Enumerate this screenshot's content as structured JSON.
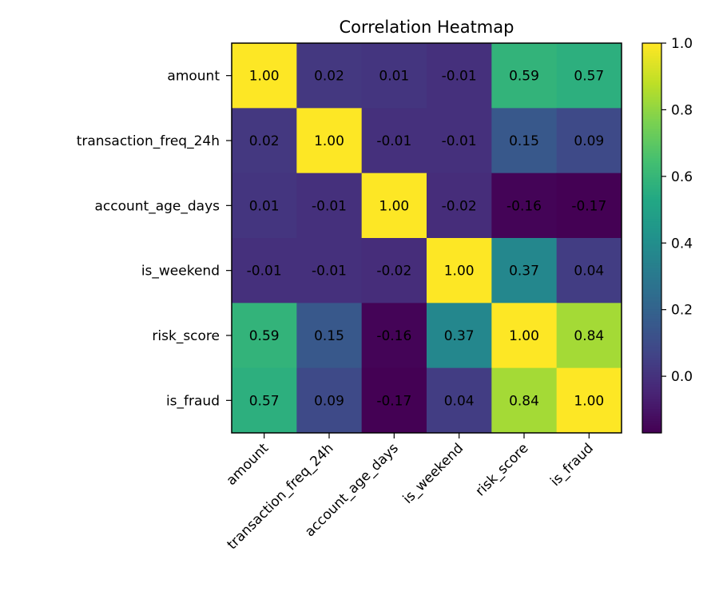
{
  "chart_data": {
    "type": "heatmap",
    "title": "Correlation Heatmap",
    "xlabel": "",
    "ylabel": "",
    "rows": [
      "amount",
      "transaction_freq_24h",
      "account_age_days",
      "is_weekend",
      "risk_score",
      "is_fraud"
    ],
    "columns": [
      "amount",
      "transaction_freq_24h",
      "account_age_days",
      "is_weekend",
      "risk_score",
      "is_fraud"
    ],
    "values": [
      [
        1.0,
        0.02,
        0.01,
        -0.01,
        0.59,
        0.57
      ],
      [
        0.02,
        1.0,
        -0.01,
        -0.01,
        0.15,
        0.09
      ],
      [
        0.01,
        -0.01,
        1.0,
        -0.02,
        -0.16,
        -0.17
      ],
      [
        -0.01,
        -0.01,
        -0.02,
        1.0,
        0.37,
        0.04
      ],
      [
        0.59,
        0.15,
        -0.16,
        0.37,
        1.0,
        0.84
      ],
      [
        0.57,
        0.09,
        -0.17,
        0.04,
        0.84,
        1.0
      ]
    ],
    "cell_labels": [
      [
        "1.00",
        "0.02",
        "0.01",
        "-0.01",
        "0.59",
        "0.57"
      ],
      [
        "0.02",
        "1.00",
        "-0.01",
        "-0.01",
        "0.15",
        "0.09"
      ],
      [
        "0.01",
        "-0.01",
        "1.00",
        "-0.02",
        "-0.16",
        "-0.17"
      ],
      [
        "-0.01",
        "-0.01",
        "-0.02",
        "1.00",
        "0.37",
        "0.04"
      ],
      [
        "0.59",
        "0.15",
        "-0.16",
        "0.37",
        "1.00",
        "0.84"
      ],
      [
        "0.57",
        "0.09",
        "-0.17",
        "0.04",
        "0.84",
        "1.00"
      ]
    ],
    "colormap": "viridis",
    "color_range": [
      -0.17,
      1.0
    ],
    "colorbar": {
      "ticks": [
        0.0,
        0.2,
        0.4,
        0.6,
        0.8,
        1.0
      ],
      "tick_labels": [
        "0.0",
        "0.2",
        "0.4",
        "0.6",
        "0.8",
        "1.0"
      ]
    },
    "x_tick_rotation": 45,
    "grid": false,
    "legend": "colorbar-right"
  }
}
